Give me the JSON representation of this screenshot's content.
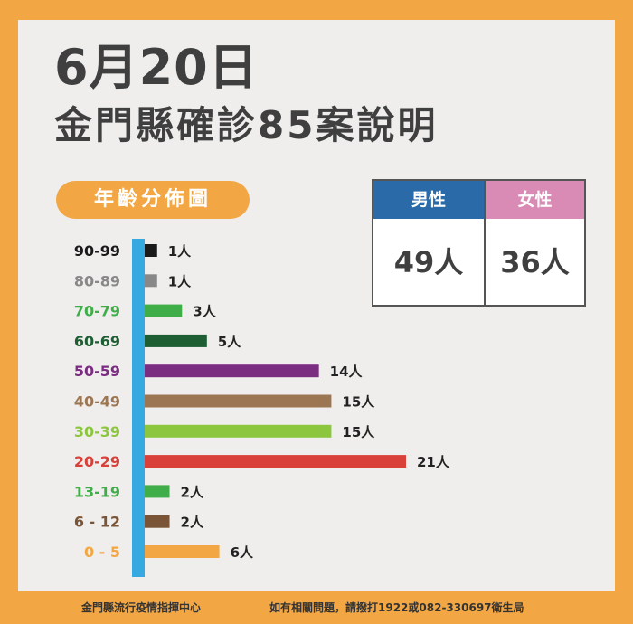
{
  "header": {
    "date": "6月20日",
    "title": "金門縣確診85案說明"
  },
  "age_section_label": "年齡分佈圖",
  "gender": {
    "male_label": "男性",
    "male_value": "49人",
    "female_label": "女性",
    "female_value": "36人",
    "colors": {
      "male": "#2b6aa8",
      "female": "#d98bb6"
    }
  },
  "footer": {
    "left": "金門縣流行疫情指揮中心",
    "right": "如有相關問題，請撥打1922或082-330697衛生局"
  },
  "chart_data": {
    "type": "bar",
    "orientation": "horizontal",
    "categories": [
      "90-99",
      "80-89",
      "70-79",
      "60-69",
      "50-59",
      "40-49",
      "30-39",
      "20-29",
      "13-19",
      "6 - 12",
      "0 - 5"
    ],
    "values": [
      1,
      1,
      3,
      5,
      14,
      15,
      15,
      21,
      2,
      2,
      6
    ],
    "value_labels": [
      "1人",
      "1人",
      "3人",
      "5人",
      "14人",
      "15人",
      "15人",
      "21人",
      "2人",
      "2人",
      "6人"
    ],
    "colors": [
      "#1a1a1a",
      "#888888",
      "#3fae49",
      "#1d5e33",
      "#7b2d82",
      "#9c7552",
      "#8cc63f",
      "#d9403a",
      "#3fae49",
      "#7a5436",
      "#f2a744"
    ],
    "axis_color": "#36a9e1",
    "xlim": [
      0,
      21
    ]
  }
}
